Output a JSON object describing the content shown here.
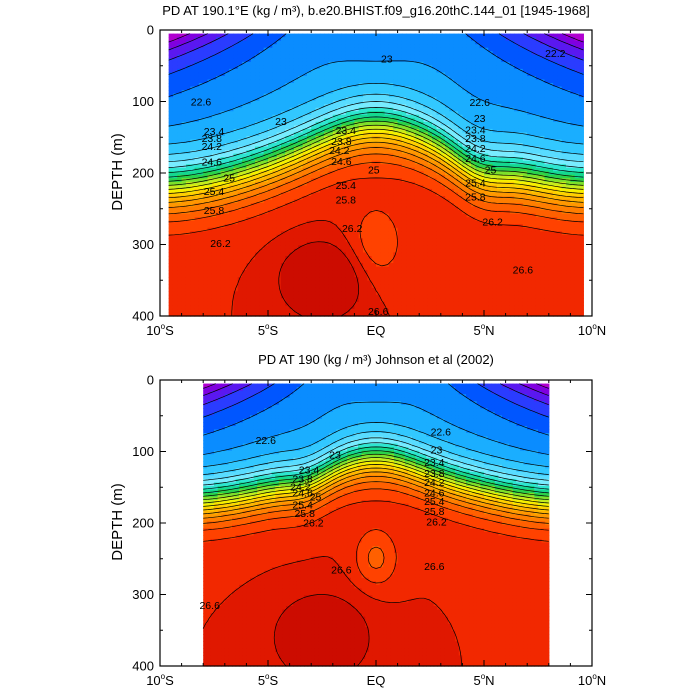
{
  "colors": {
    "palette": [
      "#b000d0",
      "#8000e0",
      "#5a18f0",
      "#2a3cff",
      "#0056ff",
      "#0a8cff",
      "#1aaeff",
      "#32c8ff",
      "#59dcff",
      "#78ecff",
      "#2ee6d0",
      "#14d890",
      "#2ad24a",
      "#7ee02a",
      "#c6ec1e",
      "#f6f000",
      "#ffd000",
      "#ffb400",
      "#ff9800",
      "#ff7e00",
      "#ff6000",
      "#ff4200",
      "#f22800",
      "#e01800",
      "#cc0c00"
    ],
    "missing": "#ffffff",
    "line": "#000000"
  },
  "chart_data": [
    {
      "type": "contour",
      "title": "PD AT 190.1°E (kg / m³), b.e20.BHIST.f09_g16.20thC.144_01 [1945-1968]",
      "ylabel": "DEPTH (m)",
      "xlim": [
        -10,
        10
      ],
      "ylim": [
        400,
        0
      ],
      "x_ticks": [
        -10,
        -5,
        0,
        5,
        10
      ],
      "x_tick_labels": [
        [
          "10",
          "o",
          "S"
        ],
        [
          "5",
          "o",
          "S"
        ],
        [
          "EQ",
          "",
          ""
        ],
        [
          "5",
          "o",
          "N"
        ],
        [
          "10",
          "o",
          "N"
        ]
      ],
      "y_ticks": [
        0,
        100,
        200,
        300,
        400
      ],
      "y_tick_labels": [
        "0",
        "100",
        "200",
        "300",
        "400"
      ],
      "data_x_range": [
        -9.6,
        9.6
      ],
      "data_depth_range": [
        5,
        400
      ],
      "contour_step": 0.2,
      "contour_min": 21.8,
      "contour_max": 26.6,
      "contour_labels": [
        {
          "x": -8.1,
          "d": 100,
          "text": "22.6"
        },
        {
          "x": -4.4,
          "d": 127,
          "text": "23"
        },
        {
          "x": -7.5,
          "d": 141,
          "text": "23.4"
        },
        {
          "x": -7.6,
          "d": 151,
          "text": "23.8"
        },
        {
          "x": -7.6,
          "d": 162,
          "text": "24.2"
        },
        {
          "x": -7.6,
          "d": 184,
          "text": "24.6"
        },
        {
          "x": -6.8,
          "d": 206,
          "text": "25"
        },
        {
          "x": -7.5,
          "d": 225,
          "text": "25.4"
        },
        {
          "x": -7.5,
          "d": 252,
          "text": "25.8"
        },
        {
          "x": -7.2,
          "d": 298,
          "text": "26.2"
        },
        {
          "x": 0.5,
          "d": 40,
          "text": "23"
        },
        {
          "x": -1.4,
          "d": 140,
          "text": "23.4"
        },
        {
          "x": -1.6,
          "d": 155,
          "text": "23.8"
        },
        {
          "x": -1.7,
          "d": 168,
          "text": "24.2"
        },
        {
          "x": -1.6,
          "d": 183,
          "text": "24.6"
        },
        {
          "x": -0.1,
          "d": 195,
          "text": "25"
        },
        {
          "x": -1.4,
          "d": 217,
          "text": "25.4"
        },
        {
          "x": -1.4,
          "d": 237,
          "text": "25.8"
        },
        {
          "x": -1.1,
          "d": 277,
          "text": "26.2"
        },
        {
          "x": 0.1,
          "d": 393,
          "text": "26.6"
        },
        {
          "x": 4.8,
          "d": 101,
          "text": "22.6"
        },
        {
          "x": 4.8,
          "d": 123,
          "text": "23"
        },
        {
          "x": 4.6,
          "d": 139,
          "text": "23.4"
        },
        {
          "x": 4.6,
          "d": 151,
          "text": "23.8"
        },
        {
          "x": 4.6,
          "d": 165,
          "text": "24.2"
        },
        {
          "x": 4.6,
          "d": 179,
          "text": "24.6"
        },
        {
          "x": 5.3,
          "d": 195,
          "text": "25"
        },
        {
          "x": 4.6,
          "d": 213,
          "text": "25.4"
        },
        {
          "x": 4.6,
          "d": 233,
          "text": "25.8"
        },
        {
          "x": 5.4,
          "d": 268,
          "text": "26.2"
        },
        {
          "x": 6.8,
          "d": 335,
          "text": "26.6"
        },
        {
          "x": 8.3,
          "d": 32,
          "text": "22.2"
        }
      ]
    },
    {
      "type": "contour",
      "title": "PD AT 190 (kg / m³) Johnson et al (2002)",
      "ylabel": "DEPTH (m)",
      "xlim": [
        -10,
        10
      ],
      "ylim": [
        400,
        0
      ],
      "x_ticks": [
        -10,
        -5,
        0,
        5,
        10
      ],
      "x_tick_labels": [
        [
          "10",
          "o",
          "S"
        ],
        [
          "5",
          "o",
          "S"
        ],
        [
          "EQ",
          "",
          ""
        ],
        [
          "5",
          "o",
          "N"
        ],
        [
          "10",
          "o",
          "N"
        ]
      ],
      "y_ticks": [
        0,
        100,
        200,
        300,
        400
      ],
      "y_tick_labels": [
        "0",
        "100",
        "200",
        "300",
        "400"
      ],
      "data_x_range": [
        -8,
        8
      ],
      "data_depth_range": [
        5,
        400
      ],
      "contour_step": 0.2,
      "contour_min": 21.8,
      "contour_max": 26.6,
      "contour_labels": [
        {
          "x": -5.1,
          "d": 84,
          "text": "22.6"
        },
        {
          "x": -1.9,
          "d": 104,
          "text": "23"
        },
        {
          "x": -3.1,
          "d": 125,
          "text": "23.4"
        },
        {
          "x": -3.4,
          "d": 138,
          "text": "23.8"
        },
        {
          "x": -3.5,
          "d": 149,
          "text": "24.2"
        },
        {
          "x": -3.4,
          "d": 157,
          "text": "24.6"
        },
        {
          "x": -2.8,
          "d": 163,
          "text": "25"
        },
        {
          "x": -3.4,
          "d": 174,
          "text": "25.4"
        },
        {
          "x": -3.3,
          "d": 186,
          "text": "25.8"
        },
        {
          "x": -2.9,
          "d": 199,
          "text": "26.2"
        },
        {
          "x": -1.6,
          "d": 265,
          "text": "26.6"
        },
        {
          "x": -7.7,
          "d": 315,
          "text": "26.6"
        },
        {
          "x": 3.0,
          "d": 72,
          "text": "22.6"
        },
        {
          "x": 2.8,
          "d": 97,
          "text": "23"
        },
        {
          "x": 2.7,
          "d": 115,
          "text": "23.4"
        },
        {
          "x": 2.7,
          "d": 130,
          "text": "23.8"
        },
        {
          "x": 2.7,
          "d": 143,
          "text": "24.2"
        },
        {
          "x": 2.7,
          "d": 157,
          "text": "24.6"
        },
        {
          "x": 2.7,
          "d": 169,
          "text": "25.4"
        },
        {
          "x": 2.7,
          "d": 183,
          "text": "25.8"
        },
        {
          "x": 2.8,
          "d": 198,
          "text": "26.2"
        },
        {
          "x": 2.7,
          "d": 260,
          "text": "26.6"
        }
      ]
    }
  ]
}
